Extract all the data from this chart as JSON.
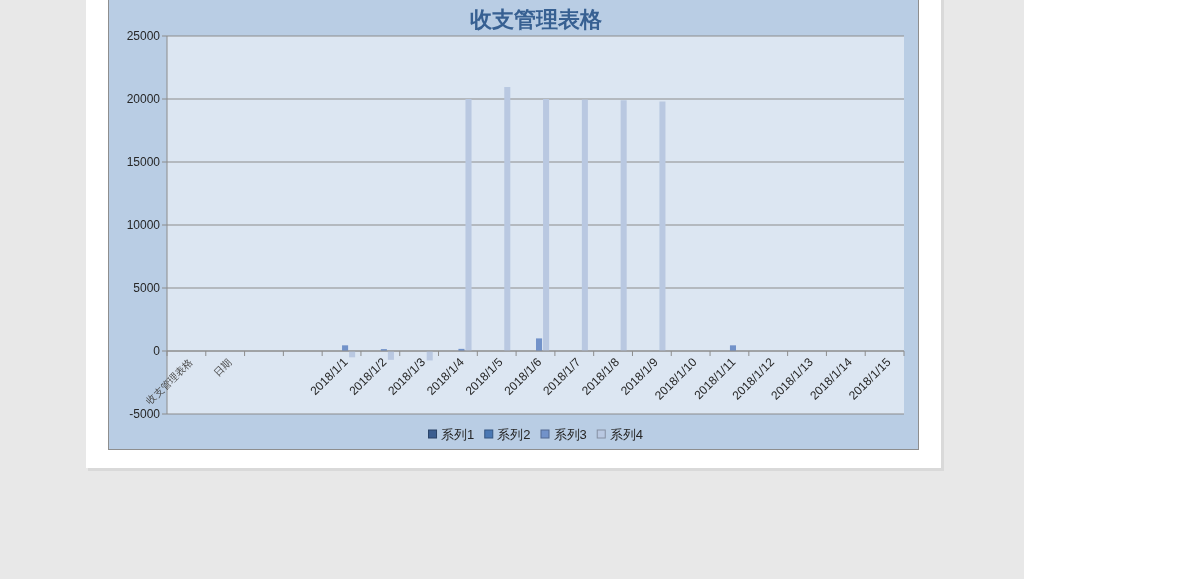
{
  "chart_data": {
    "type": "bar",
    "title": "收支管理表格",
    "categories": [
      "收支管理表格",
      "日期",
      null,
      null,
      "2018/1/1",
      "2018/1/2",
      "2018/1/3",
      "2018/1/4",
      "2018/1/5",
      "2018/1/6",
      "2018/1/7",
      "2018/1/8",
      "2018/1/9",
      "2018/1/10",
      "2018/1/11",
      "2018/1/12",
      "2018/1/13",
      "2018/1/14",
      "2018/1/15"
    ],
    "series": [
      {
        "name": "系列1",
        "color": "#3b5d8f",
        "values": [
          null,
          null,
          null,
          null,
          null,
          null,
          null,
          null,
          null,
          null,
          null,
          null,
          null,
          null,
          null,
          null,
          null,
          null,
          null
        ]
      },
      {
        "name": "系列2",
        "color": "#4a78b4",
        "values": [
          null,
          null,
          null,
          null,
          null,
          null,
          null,
          null,
          null,
          null,
          null,
          null,
          null,
          null,
          null,
          null,
          null,
          null,
          null
        ]
      },
      {
        "name": "系列3",
        "color": "#7292c9",
        "values": [
          null,
          null,
          null,
          null,
          450,
          150,
          null,
          170,
          null,
          1000,
          null,
          null,
          null,
          null,
          450,
          null,
          null,
          null,
          null
        ]
      },
      {
        "name": "系列4",
        "color": "#b9c8e1",
        "values": [
          null,
          null,
          null,
          null,
          -500,
          -700,
          -750,
          20000,
          20950,
          20000,
          19950,
          19900,
          19800,
          null,
          null,
          null,
          null,
          null,
          null
        ]
      }
    ],
    "ylim": [
      -5000,
      25000
    ],
    "yticks": [
      -5000,
      0,
      5000,
      10000,
      15000,
      20000,
      25000
    ],
    "grid": "y",
    "legend": "bottom"
  }
}
